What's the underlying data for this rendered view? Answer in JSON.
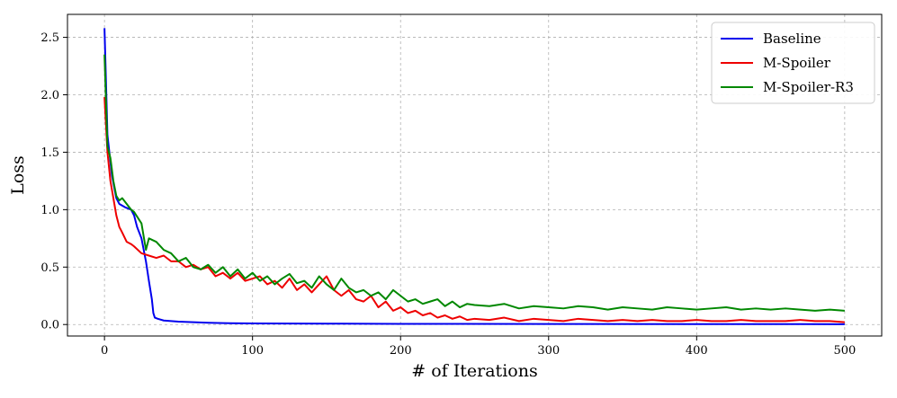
{
  "chart_data": {
    "type": "line",
    "xlabel": "# of Iterations",
    "ylabel": "Loss",
    "xlim": [
      -25,
      525
    ],
    "ylim": [
      -0.1,
      2.7
    ],
    "xticks": [
      0,
      100,
      200,
      300,
      400,
      500
    ],
    "yticks": [
      0.0,
      0.5,
      1.0,
      1.5,
      2.0,
      2.5
    ],
    "xtick_labels": [
      "0",
      "100",
      "200",
      "300",
      "400",
      "500"
    ],
    "ytick_labels": [
      "0.0",
      "0.5",
      "1.0",
      "1.5",
      "2.0",
      "2.5"
    ],
    "grid": true,
    "legend_position": "top-right",
    "series": [
      {
        "name": "Baseline",
        "color": "#0000ee",
        "x": [
          0,
          2,
          5,
          8,
          10,
          14,
          18,
          20,
          22,
          25,
          28,
          30,
          32,
          33,
          34,
          36,
          40,
          50,
          60,
          70,
          80,
          100,
          150,
          200,
          300,
          400,
          500
        ],
        "y": [
          2.58,
          1.65,
          1.3,
          1.1,
          1.05,
          1.02,
          1.0,
          0.95,
          0.85,
          0.75,
          0.55,
          0.38,
          0.22,
          0.1,
          0.06,
          0.05,
          0.035,
          0.025,
          0.02,
          0.015,
          0.012,
          0.01,
          0.008,
          0.006,
          0.005,
          0.004,
          0.003
        ]
      },
      {
        "name": "M-Spoiler",
        "color": "#ee0000",
        "x": [
          0,
          2,
          4,
          6,
          8,
          10,
          12,
          15,
          18,
          20,
          25,
          30,
          35,
          40,
          45,
          50,
          55,
          60,
          65,
          70,
          75,
          80,
          85,
          90,
          95,
          100,
          105,
          110,
          115,
          120,
          125,
          130,
          135,
          140,
          145,
          150,
          155,
          160,
          165,
          170,
          175,
          180,
          185,
          190,
          195,
          200,
          205,
          210,
          215,
          220,
          225,
          230,
          235,
          240,
          245,
          250,
          260,
          270,
          280,
          290,
          300,
          310,
          320,
          330,
          340,
          350,
          360,
          370,
          380,
          390,
          400,
          410,
          420,
          430,
          440,
          450,
          460,
          470,
          480,
          490,
          500
        ],
        "y": [
          1.98,
          1.5,
          1.25,
          1.1,
          0.95,
          0.85,
          0.8,
          0.72,
          0.7,
          0.68,
          0.62,
          0.6,
          0.58,
          0.6,
          0.55,
          0.55,
          0.5,
          0.52,
          0.48,
          0.5,
          0.42,
          0.45,
          0.4,
          0.45,
          0.38,
          0.4,
          0.42,
          0.35,
          0.38,
          0.32,
          0.4,
          0.3,
          0.35,
          0.28,
          0.35,
          0.42,
          0.3,
          0.25,
          0.3,
          0.22,
          0.2,
          0.25,
          0.15,
          0.2,
          0.12,
          0.15,
          0.1,
          0.12,
          0.08,
          0.1,
          0.06,
          0.08,
          0.05,
          0.07,
          0.04,
          0.05,
          0.04,
          0.06,
          0.03,
          0.05,
          0.04,
          0.03,
          0.05,
          0.04,
          0.03,
          0.04,
          0.03,
          0.04,
          0.03,
          0.03,
          0.04,
          0.03,
          0.03,
          0.04,
          0.03,
          0.03,
          0.03,
          0.04,
          0.03,
          0.03,
          0.02
        ]
      },
      {
        "name": "M-Spoiler-R3",
        "color": "#008800",
        "x": [
          0,
          2,
          4,
          6,
          8,
          10,
          12,
          15,
          18,
          20,
          25,
          28,
          30,
          35,
          40,
          45,
          50,
          55,
          60,
          65,
          70,
          75,
          80,
          85,
          90,
          95,
          100,
          105,
          110,
          115,
          120,
          125,
          130,
          135,
          140,
          145,
          150,
          155,
          160,
          165,
          170,
          175,
          180,
          185,
          190,
          195,
          200,
          205,
          210,
          215,
          220,
          225,
          230,
          235,
          240,
          245,
          250,
          260,
          270,
          280,
          290,
          300,
          310,
          320,
          330,
          340,
          350,
          360,
          370,
          380,
          390,
          400,
          410,
          420,
          430,
          440,
          450,
          460,
          470,
          480,
          490,
          500
        ],
        "y": [
          2.35,
          1.55,
          1.45,
          1.25,
          1.12,
          1.08,
          1.1,
          1.05,
          1.0,
          0.98,
          0.88,
          0.65,
          0.75,
          0.72,
          0.65,
          0.62,
          0.55,
          0.58,
          0.5,
          0.48,
          0.52,
          0.45,
          0.5,
          0.42,
          0.48,
          0.4,
          0.45,
          0.38,
          0.42,
          0.35,
          0.4,
          0.44,
          0.36,
          0.38,
          0.32,
          0.42,
          0.35,
          0.3,
          0.4,
          0.32,
          0.28,
          0.3,
          0.25,
          0.28,
          0.22,
          0.3,
          0.25,
          0.2,
          0.22,
          0.18,
          0.2,
          0.22,
          0.16,
          0.2,
          0.15,
          0.18,
          0.17,
          0.16,
          0.18,
          0.14,
          0.16,
          0.15,
          0.14,
          0.16,
          0.15,
          0.13,
          0.15,
          0.14,
          0.13,
          0.15,
          0.14,
          0.13,
          0.14,
          0.15,
          0.13,
          0.14,
          0.13,
          0.14,
          0.13,
          0.12,
          0.13,
          0.12
        ]
      }
    ]
  }
}
